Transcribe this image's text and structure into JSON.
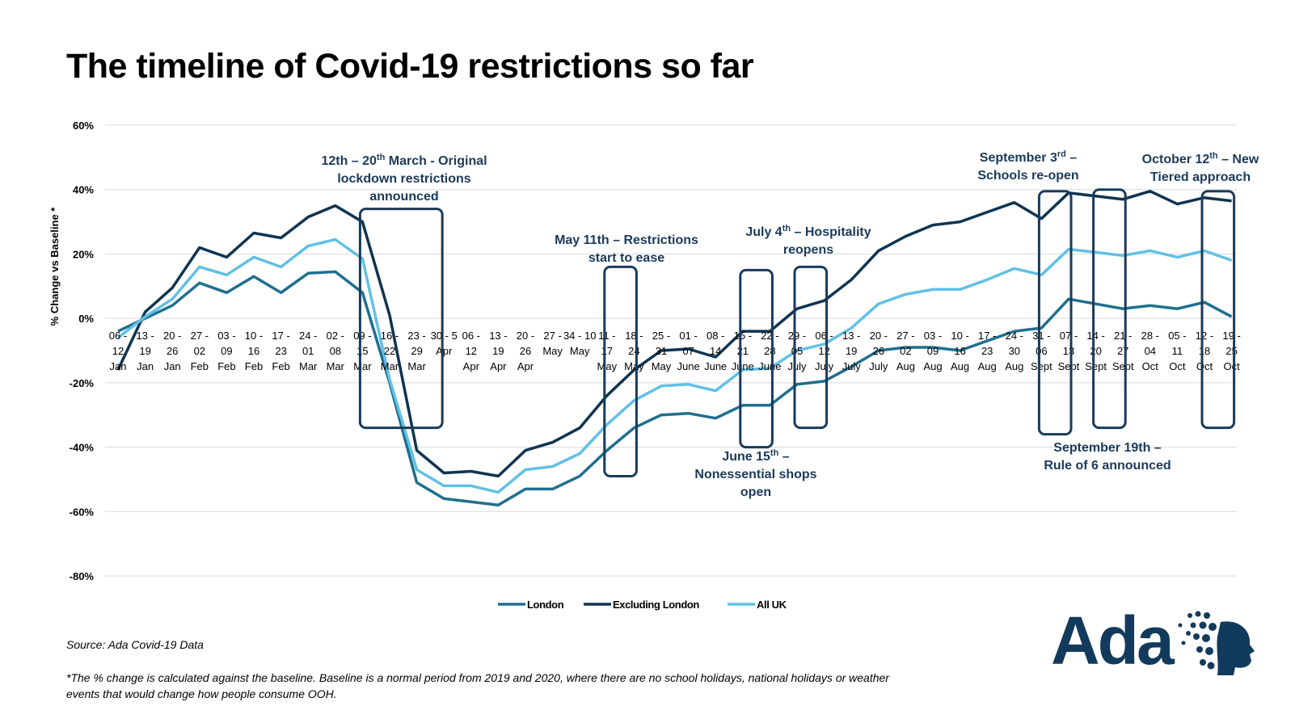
{
  "title": "The timeline of Covid-19 restrictions so far",
  "source": "Source: Ada Covid-19 Data",
  "footnote": "*The % change is calculated against the baseline. Baseline is a normal period from 2019 and 2020, where there are no school holidays, national holidays or weather events that would change how people consume OOH.",
  "logo_text": "Ada",
  "colors": {
    "london": "#1f6f8f",
    "excluding_london": "#0f3451",
    "all_uk": "#62c0e6",
    "annotation": "#1a3a5a",
    "grid": "#d9d9d9"
  },
  "chart_data": {
    "type": "line",
    "ylabel": "% Change vs Baseline *",
    "ylim": [
      -80,
      60
    ],
    "yticks": [
      60,
      40,
      20,
      0,
      -20,
      -40,
      -60,
      -80
    ],
    "ytick_labels": [
      "60%",
      "40%",
      "20%",
      "0%",
      "-20%",
      "-40%",
      "-60%",
      "-80%"
    ],
    "grid": true,
    "legend_position": "bottom-center",
    "categories": [
      [
        "06 -",
        "12",
        "Jan"
      ],
      [
        "13 -",
        "19",
        "Jan"
      ],
      [
        "20 -",
        "26",
        "Jan"
      ],
      [
        "27 -",
        "02",
        "Feb"
      ],
      [
        "03 -",
        "09",
        "Feb"
      ],
      [
        "10 -",
        "16",
        "Feb"
      ],
      [
        "17 -",
        "23",
        "Feb"
      ],
      [
        "24 -",
        "01",
        "Mar"
      ],
      [
        "02 -",
        "08",
        "Mar"
      ],
      [
        "09 -",
        "15",
        "Mar"
      ],
      [
        "16 -",
        "22",
        "Mar"
      ],
      [
        "23 -",
        "29",
        "Mar"
      ],
      [
        "30 - 5",
        "Apr",
        ""
      ],
      [
        "06 -",
        "12",
        "Apr"
      ],
      [
        "13 -",
        "19",
        "Apr"
      ],
      [
        "20 -",
        "26",
        "Apr"
      ],
      [
        "27 -",
        "May",
        ""
      ],
      [
        "34 - 10",
        "May",
        ""
      ],
      [
        "11 -",
        "17",
        "May"
      ],
      [
        "18 -",
        "24",
        "May"
      ],
      [
        "25 -",
        "31",
        "May"
      ],
      [
        "01 -",
        "07",
        "June"
      ],
      [
        "08 -",
        "14",
        "June"
      ],
      [
        "15 -",
        "21",
        "June"
      ],
      [
        "22 -",
        "28",
        "June"
      ],
      [
        "29 -",
        "05",
        "July"
      ],
      [
        "06 -",
        "12",
        "July"
      ],
      [
        "13 -",
        "19",
        "July"
      ],
      [
        "20 -",
        "26",
        "July"
      ],
      [
        "27 -",
        "02",
        "Aug"
      ],
      [
        "03 -",
        "09",
        "Aug"
      ],
      [
        "10 -",
        "16",
        "Aug"
      ],
      [
        "17 -",
        "23",
        "Aug"
      ],
      [
        "24 -",
        "30",
        "Aug"
      ],
      [
        "31 -",
        "06",
        "Sept"
      ],
      [
        "07 -",
        "13",
        "Sept"
      ],
      [
        "14 -",
        "20",
        "Sept"
      ],
      [
        "21 -",
        "27",
        "Sept"
      ],
      [
        "28 -",
        "04",
        "Oct"
      ],
      [
        "05 -",
        "11",
        "Oct"
      ],
      [
        "12 -",
        "18",
        "Oct"
      ],
      [
        "19 -",
        "25",
        "Oct"
      ]
    ],
    "series": [
      {
        "name": "London",
        "color": "#1f6f8f",
        "values": [
          -4,
          0,
          4,
          11,
          8,
          13,
          8,
          14,
          14.5,
          8,
          -20,
          -51,
          -56,
          -57,
          -58,
          -53,
          -53,
          -49,
          -41,
          -34,
          -30,
          -29.5,
          -31,
          -27,
          -27,
          -20.5,
          -19.5,
          -15,
          -10,
          -9,
          -9,
          -10,
          -7,
          -4,
          -3,
          6,
          4.5,
          3,
          4,
          3,
          5,
          0.5
        ]
      },
      {
        "name": "Excluding London",
        "color": "#0f3451",
        "values": [
          -16,
          2,
          9.5,
          22,
          19,
          26.5,
          25,
          31.5,
          35,
          30,
          1,
          -41,
          -48,
          -47.5,
          -49,
          -41,
          -38.5,
          -34,
          -24,
          -16,
          -10,
          -9.5,
          -12,
          -4,
          -4,
          3,
          5.5,
          12,
          21,
          25.5,
          29,
          30,
          33,
          36,
          31,
          39,
          38,
          37,
          39.5,
          35.5,
          37.5,
          36.5
        ]
      },
      {
        "name": "All UK",
        "color": "#62c0e6",
        "values": [
          -6,
          0.5,
          6,
          16,
          13.5,
          19,
          16,
          22.5,
          24.5,
          18.5,
          -19,
          -47,
          -52,
          -52,
          -54,
          -47,
          -46,
          -42,
          -33,
          -25.5,
          -21,
          -20.5,
          -22.5,
          -16,
          -15.5,
          -10,
          -8,
          -3,
          4.5,
          7.5,
          9,
          9,
          12,
          15.5,
          13.5,
          21.5,
          20.5,
          19.5,
          21,
          19,
          21,
          18
        ]
      }
    ],
    "annotations": [
      {
        "id": "lockdown",
        "lines": [
          [
            "12th – 20",
            "th",
            " March - Original"
          ],
          [
            "lockdown restrictions",
            "",
            ""
          ],
          [
            "announced",
            "",
            ""
          ]
        ],
        "from": 9.0,
        "to": 11.85,
        "ytop": 34,
        "ybot": -34
      },
      {
        "id": "ease",
        "lines": [
          [
            "May 11th – Restrictions",
            "",
            ""
          ],
          [
            "start to ease",
            "",
            ""
          ]
        ],
        "from": 18.0,
        "to": 19.0,
        "ytop": 16,
        "ybot": -49
      },
      {
        "id": "shops",
        "lines": [
          [
            "June 15",
            "th",
            " –"
          ],
          [
            "Nonessential shops",
            "",
            ""
          ],
          [
            "open",
            "",
            ""
          ]
        ],
        "from": 23.0,
        "to": 24.0,
        "ytop": 15,
        "ybot": -40
      },
      {
        "id": "hospitality",
        "lines": [
          [
            "July 4",
            "th",
            " – Hospitality"
          ],
          [
            "reopens",
            "",
            ""
          ]
        ],
        "from": 25.0,
        "to": 26.0,
        "ytop": 16,
        "ybot": -34
      },
      {
        "id": "schools",
        "lines": [
          [
            "September 3",
            "rd",
            " –"
          ],
          [
            "Schools re-open",
            "",
            ""
          ]
        ],
        "from": 34.0,
        "to": 35.0,
        "ytop": 39.5,
        "ybot": -36
      },
      {
        "id": "rule6",
        "lines": [
          [
            "September 19th –",
            "",
            ""
          ],
          [
            "Rule of 6 announced",
            "",
            ""
          ]
        ],
        "from": 36.0,
        "to": 37.0,
        "ytop": 40,
        "ybot": -34
      },
      {
        "id": "tiered",
        "lines": [
          [
            "October 12",
            "th",
            " – New"
          ],
          [
            "Tiered approach",
            "",
            ""
          ]
        ],
        "from": 40.0,
        "to": 41.0,
        "ytop": 39.5,
        "ybot": -34
      }
    ]
  }
}
